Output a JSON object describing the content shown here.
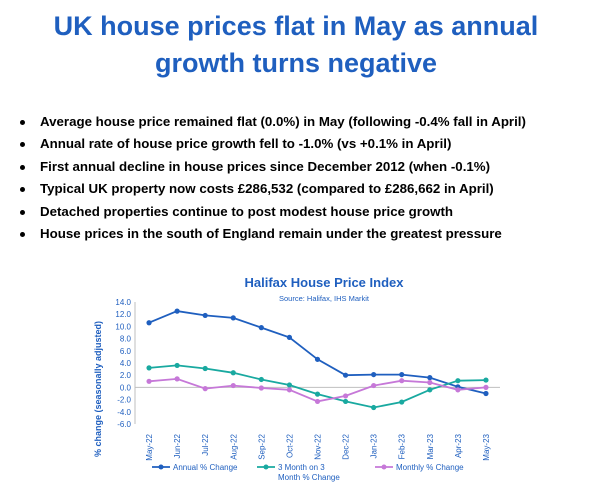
{
  "headline": {
    "line1": "UK house prices flat in May as annual",
    "line2": "growth turns negative"
  },
  "bullets": [
    "Average house price remained flat (0.0%) in May (following -0.4% fall in April)",
    "Annual rate of house price growth fell to -1.0% (vs +0.1% in April)",
    "First annual decline in house prices since December 2012 (when -0.1%)",
    "Typical UK property now costs £286,532 (compared to £286,662 in April)",
    "Detached properties continue to post modest house price growth",
    "House prices in the south of England remain under the greatest pressure"
  ],
  "chart_data": {
    "type": "line",
    "title": "Halifax House Price Index",
    "subtitle": "Source: Halifax, IHS Markit",
    "ylabel": "% change (seasonally adjusted)",
    "xlabel": "",
    "ylim": [
      -6.0,
      14.0
    ],
    "ytick_step": 2.0,
    "yticks": [
      "14.0",
      "12.0",
      "10.0",
      "8.0",
      "6.0",
      "4.0",
      "2.0",
      "0.0",
      "-2.0",
      "-4.0",
      "-6.0"
    ],
    "grid": false,
    "legend_position": "bottom",
    "categories": [
      "May-22",
      "Jun-22",
      "Jul-22",
      "Aug-22",
      "Sep-22",
      "Oct-22",
      "Nov-22",
      "Dec-22",
      "Jan-23",
      "Feb-23",
      "Mar-23",
      "Apr-23",
      "May-23"
    ],
    "series": [
      {
        "name": "Annual % Change",
        "color": "#1f5fbf",
        "values": [
          10.6,
          12.5,
          11.8,
          11.4,
          9.8,
          8.2,
          4.6,
          2.0,
          2.1,
          2.1,
          1.6,
          0.1,
          -1.0
        ]
      },
      {
        "name": "3 Month on 3 Month % Change",
        "color": "#19a9a0",
        "values": [
          3.2,
          3.6,
          3.1,
          2.4,
          1.3,
          0.4,
          -1.1,
          -2.3,
          -3.3,
          -2.4,
          -0.4,
          1.1,
          1.2
        ]
      },
      {
        "name": "Monthly % Change",
        "color": "#c678d8",
        "values": [
          1.0,
          1.4,
          -0.2,
          0.3,
          -0.1,
          -0.4,
          -2.3,
          -1.4,
          0.3,
          1.1,
          0.8,
          -0.4,
          0.0
        ]
      }
    ]
  }
}
